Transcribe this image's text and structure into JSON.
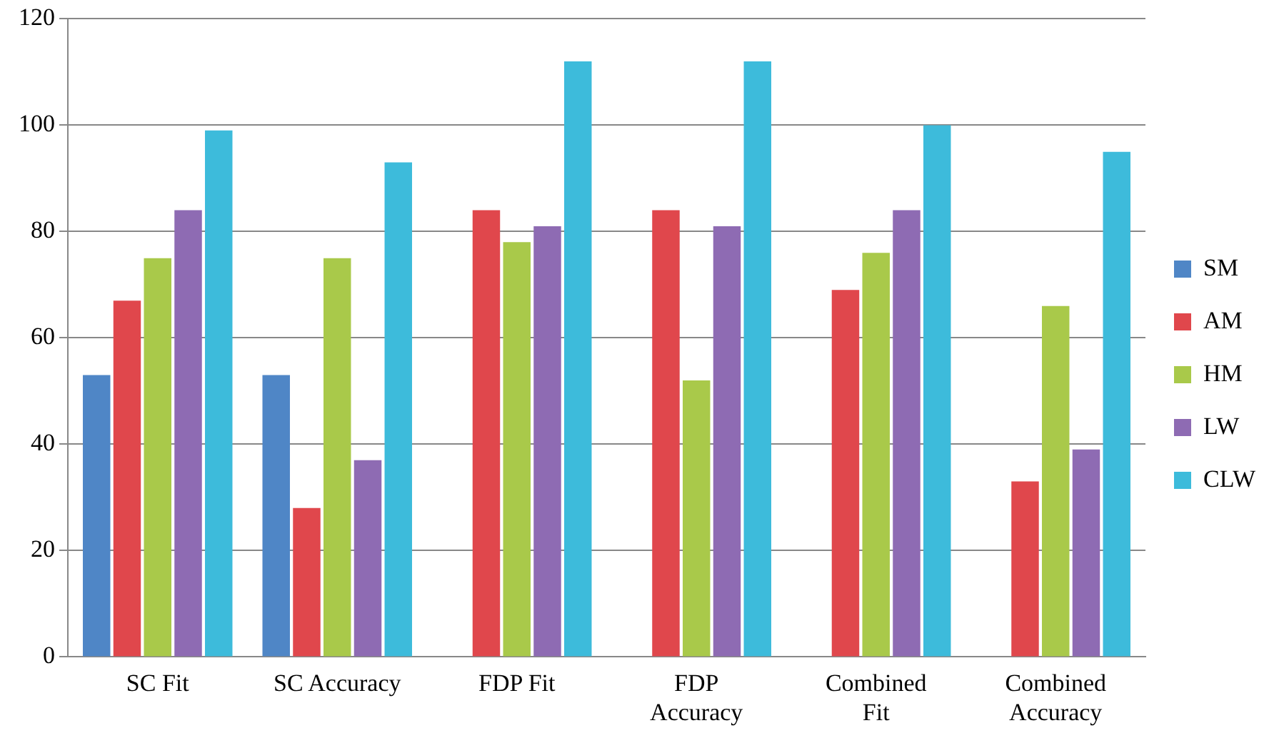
{
  "chart_data": {
    "type": "bar",
    "categories": [
      "SC Fit",
      "SC Accuracy",
      "FDP Fit",
      "FDP Accuracy",
      "Combined Fit",
      "Combined Accuracy"
    ],
    "series": [
      {
        "name": "SM",
        "color": "#4f86c6",
        "values": [
          53,
          53,
          0,
          0,
          0,
          0
        ]
      },
      {
        "name": "AM",
        "color": "#e0474c",
        "values": [
          67,
          28,
          84,
          84,
          69,
          33
        ]
      },
      {
        "name": "HM",
        "color": "#a9c94a",
        "values": [
          75,
          75,
          78,
          52,
          76,
          66
        ]
      },
      {
        "name": "LW",
        "color": "#8e6bb3",
        "values": [
          84,
          37,
          81,
          81,
          84,
          39
        ]
      },
      {
        "name": "CLW",
        "color": "#3dbbdb",
        "values": [
          99,
          93,
          112,
          112,
          100,
          95
        ]
      }
    ],
    "ylim": [
      0,
      120
    ],
    "yticks": [
      0,
      20,
      40,
      60,
      80,
      100,
      120
    ],
    "grid": "y",
    "legend": "right"
  }
}
